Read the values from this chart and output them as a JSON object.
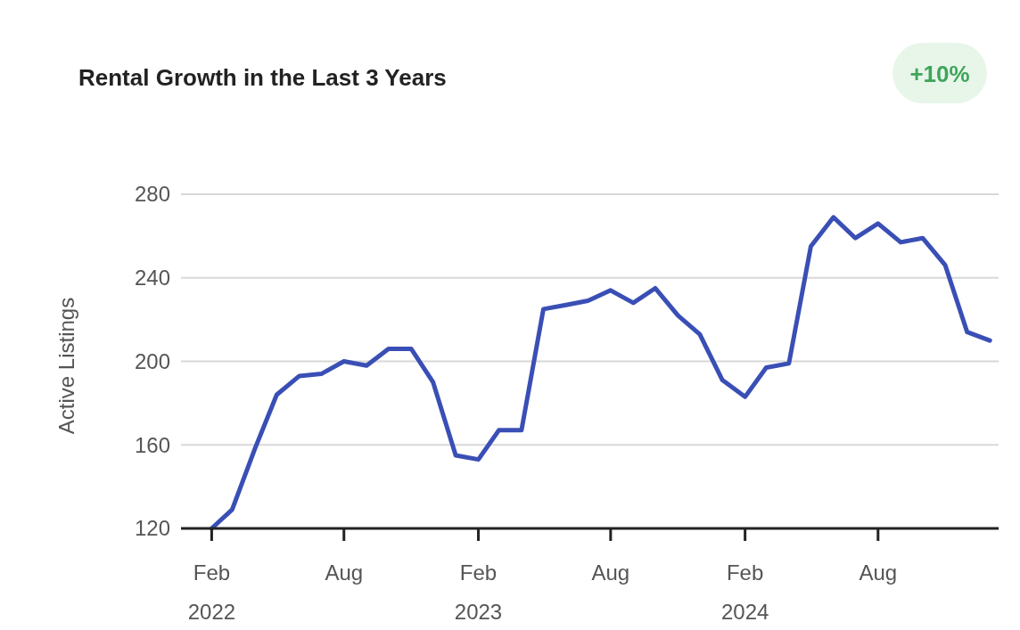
{
  "chart_data": {
    "type": "line",
    "title": "Rental Growth in the Last 3 Years",
    "ylabel": "Active Listings",
    "annotations": [
      "+10%"
    ],
    "x": [
      "2022-02",
      "2022-03",
      "2022-04",
      "2022-05",
      "2022-06",
      "2022-07",
      "2022-08",
      "2022-09",
      "2022-10",
      "2022-11",
      "2022-12",
      "2023-01",
      "2023-02",
      "2023-03",
      "2023-04",
      "2023-05",
      "2023-06",
      "2023-07",
      "2023-08",
      "2023-09",
      "2023-10",
      "2023-11",
      "2023-12",
      "2024-01",
      "2024-02",
      "2024-03",
      "2024-04",
      "2024-05",
      "2024-06",
      "2024-07",
      "2024-08",
      "2024-09",
      "2024-10",
      "2024-11",
      "2024-12",
      "2025-01"
    ],
    "series": [
      {
        "color": "#3a4fb5",
        "values": [
          120,
          129,
          158,
          184,
          193,
          194,
          200,
          198,
          206,
          206,
          190,
          155,
          153,
          167,
          167,
          225,
          227,
          229,
          234,
          228,
          235,
          222,
          213,
          191,
          183,
          197,
          199,
          255,
          269,
          259,
          266,
          257,
          259,
          246,
          214,
          210
        ]
      }
    ],
    "xlim": [
      "2021-12-21",
      "2025-01-13"
    ],
    "xticks": [
      {
        "value": "2022-02",
        "label": "Feb\n2022"
      },
      {
        "value": "2022-08",
        "label": "Aug"
      },
      {
        "value": "2023-02",
        "label": "Feb\n2023"
      },
      {
        "value": "2023-08",
        "label": "Aug"
      },
      {
        "value": "2024-02",
        "label": "Feb\n2024"
      },
      {
        "value": "2024-08",
        "label": "Aug"
      }
    ],
    "ylim": [
      120,
      280
    ],
    "yticks": [
      120,
      160,
      200,
      240,
      280
    ],
    "grid": "y",
    "marker": "none",
    "line_style": "solid"
  }
}
